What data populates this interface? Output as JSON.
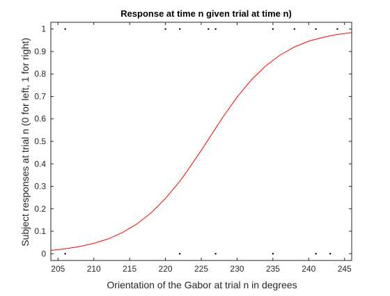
{
  "chart_data": {
    "type": "scatter",
    "title": "Response at time n given trial at time n)",
    "xlabel": "Orientation of the Gabor at trial n in degrees",
    "ylabel": "Subject responses at trial n (0 for left, 1 for right)",
    "xlim": [
      204,
      246
    ],
    "ylim": [
      -0.03,
      1.03
    ],
    "x_ticks": [
      205,
      210,
      215,
      220,
      225,
      230,
      235,
      240,
      245
    ],
    "y_ticks": [
      0,
      0.1,
      0.2,
      0.3,
      0.4,
      0.5,
      0.6,
      0.7,
      0.8,
      0.9,
      1
    ],
    "grid": false,
    "colors": {
      "fit_curve": "#ff0000",
      "points": "#000000",
      "axes": "#262626"
    },
    "series": [
      {
        "kind": "points",
        "x": [
          206,
          222,
          227,
          235,
          241,
          243,
          206,
          220,
          222,
          226,
          227,
          235,
          238,
          241,
          244
        ],
        "y": [
          0,
          0,
          0,
          0,
          0,
          0,
          1,
          1,
          1,
          1,
          1,
          1,
          1,
          1,
          1
        ]
      },
      {
        "kind": "logistic-fit",
        "x": [
          204,
          206,
          208,
          210,
          212,
          214,
          216,
          218,
          220,
          222,
          223,
          224,
          225,
          226,
          227,
          228,
          230,
          232,
          234,
          236,
          238,
          240,
          242,
          244,
          246
        ],
        "y": [
          0.015,
          0.022,
          0.032,
          0.046,
          0.066,
          0.094,
          0.132,
          0.182,
          0.246,
          0.322,
          0.367,
          0.413,
          0.46,
          0.509,
          0.558,
          0.607,
          0.697,
          0.774,
          0.836,
          0.884,
          0.92,
          0.946,
          0.963,
          0.976,
          0.984
        ]
      }
    ]
  }
}
